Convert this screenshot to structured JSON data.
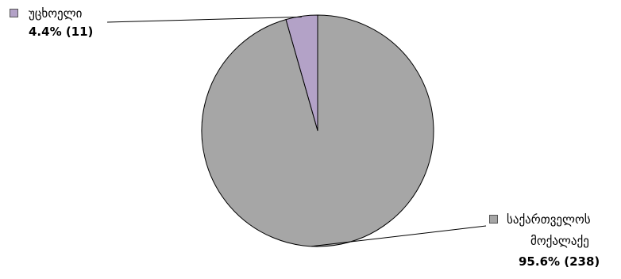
{
  "chart_data": {
    "type": "pie",
    "start_angle_deg": 0,
    "direction": "counterclockwise",
    "slices": [
      {
        "label_lines": [
          "საქართველოს",
          "მოქალაქე"
        ],
        "percent_text": "95.6%  (238)",
        "value": 238,
        "percent": 95.6,
        "color": "#a6a6a6"
      },
      {
        "label_lines": [
          "უცხოელი"
        ],
        "percent_text": "4.4%  (11)",
        "value": 11,
        "percent": 4.4,
        "color": "#b3a2c7"
      }
    ],
    "stroke_color": "#000000",
    "legend_placement": "callouts"
  }
}
